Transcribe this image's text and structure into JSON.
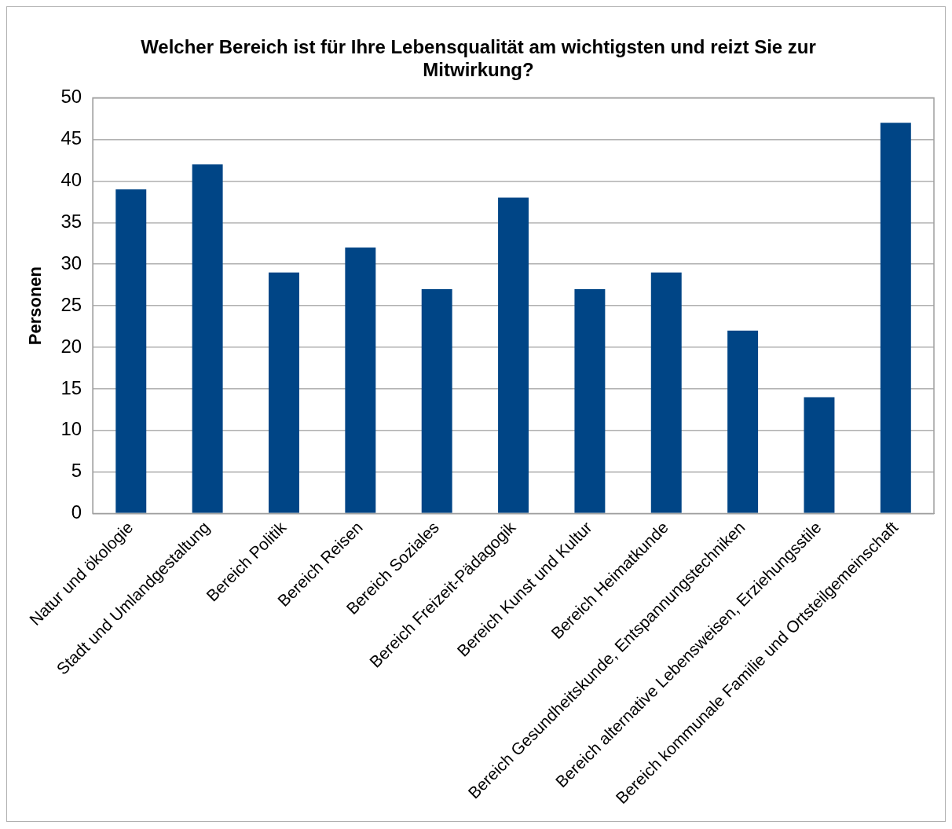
{
  "chart_data": {
    "type": "bar",
    "title": "Welcher Bereich ist für Ihre Lebensqualität am wichtigsten und reizt Sie zur Mitwirkung?",
    "ylabel": "Personen",
    "categories": [
      "Natur und ökologie",
      "Stadt und Umlandgestaltung",
      "Bereich Politik",
      "Bereich Reisen",
      "Bereich Soziales",
      "Bereich Freizeit-Pädagogik",
      "Bereich Kunst und Kultur",
      "Bereich Heimatkunde",
      "Bereich Gesundheitskunde, Entspannungstechniken",
      "Bereich alternative Lebensweisen, Erziehungsstile",
      "Bereich kommunale Familie und Ortsteilgemeinschaft"
    ],
    "values": [
      39,
      42,
      29,
      32,
      27,
      38,
      27,
      29,
      22,
      14,
      47
    ],
    "color": "#004586",
    "ylim": [
      0,
      50
    ],
    "yticks": [
      0,
      5,
      10,
      15,
      20,
      25,
      30,
      35,
      40,
      45,
      50
    ],
    "grid": "y"
  }
}
